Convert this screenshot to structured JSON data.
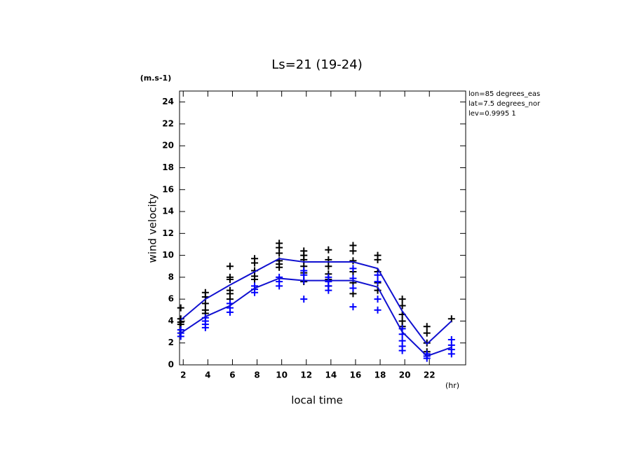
{
  "chart_data": {
    "type": "line",
    "title": "Ls=21 (19-24)",
    "y_unit": "(m.s-1)",
    "y_label": "wind velocity",
    "x_label": "local time",
    "x_unit": "(hr)",
    "annotations": [
      "lon=85 degrees_eas",
      "lat=7.5 degrees_nor",
      "lev=0.9995 1"
    ],
    "xlim": [
      1.7,
      24.95
    ],
    "ylim": [
      0,
      25
    ],
    "xticks": [
      2,
      4,
      6,
      8,
      10,
      12,
      14,
      16,
      18,
      20,
      22
    ],
    "yticks": [
      0,
      2,
      4,
      6,
      8,
      10,
      12,
      14,
      16,
      18,
      20,
      22,
      24
    ],
    "series": [
      {
        "style": "markers",
        "color": "#000000",
        "x": [
          1.8,
          1.8,
          1.8,
          1.8,
          3.8,
          3.8,
          3.8,
          3.8,
          3.8,
          5.8,
          5.8,
          5.8,
          5.8,
          5.8,
          5.8,
          7.8,
          7.8,
          7.8,
          7.8,
          7.8,
          9.8,
          9.8,
          9.8,
          9.8,
          9.8,
          9.8,
          11.8,
          11.8,
          11.8,
          11.8,
          11.8,
          11.8,
          13.8,
          13.8,
          13.8,
          13.8,
          13.8,
          13.8,
          15.8,
          15.8,
          15.8,
          15.8,
          15.8,
          15.8,
          17.8,
          17.8,
          17.8,
          17.8,
          17.8,
          19.8,
          19.8,
          19.8,
          19.8,
          19.8,
          21.8,
          21.8,
          21.8,
          21.8,
          23.8
        ],
        "values": [
          5.2,
          4.2,
          3.9,
          3.7,
          6.6,
          6.2,
          5.6,
          5.0,
          4.7,
          9.0,
          8.0,
          7.8,
          6.8,
          6.5,
          6.0,
          9.7,
          9.3,
          8.6,
          8.1,
          7.8,
          11.1,
          10.7,
          10.2,
          9.5,
          9.2,
          8.9,
          10.4,
          10.0,
          9.6,
          9.0,
          8.4,
          7.6,
          10.5,
          9.6,
          9.0,
          8.3,
          7.8,
          7.2,
          10.9,
          10.4,
          9.5,
          8.5,
          7.5,
          6.5,
          10.0,
          9.6,
          8.5,
          7.5,
          6.8,
          6.0,
          5.4,
          4.6,
          4.0,
          3.5,
          3.5,
          2.9,
          2.0,
          1.2,
          4.2
        ]
      },
      {
        "style": "markers",
        "color": "#0000ff",
        "x": [
          1.8,
          1.8,
          1.8,
          3.8,
          3.8,
          3.8,
          3.8,
          5.8,
          5.8,
          5.8,
          7.8,
          7.8,
          7.8,
          9.8,
          9.8,
          9.8,
          11.8,
          11.8,
          11.8,
          11.8,
          13.8,
          13.8,
          13.8,
          13.8,
          15.8,
          15.8,
          15.8,
          15.8,
          17.8,
          17.8,
          17.8,
          17.8,
          19.8,
          19.8,
          19.8,
          19.8,
          19.8,
          21.8,
          21.8,
          21.8,
          23.8,
          23.8,
          23.8,
          23.8
        ],
        "values": [
          3.2,
          2.9,
          2.6,
          4.3,
          4.0,
          3.7,
          3.4,
          5.6,
          5.2,
          4.8,
          7.2,
          6.9,
          6.6,
          8.0,
          7.6,
          7.2,
          8.6,
          8.2,
          7.7,
          6.0,
          8.0,
          7.6,
          7.2,
          6.8,
          8.8,
          7.9,
          7.0,
          5.3,
          8.2,
          7.6,
          6.0,
          5.0,
          3.3,
          2.8,
          2.2,
          1.7,
          1.3,
          1.0,
          0.8,
          0.6,
          2.3,
          1.8,
          1.4,
          1.0
        ]
      },
      {
        "style": "line",
        "color": "#1010d0",
        "x": [
          1.8,
          3.8,
          5.8,
          7.8,
          9.8,
          11.8,
          13.8,
          15.8,
          17.8,
          19.8,
          21.8,
          23.8
        ],
        "values": [
          4.1,
          6.0,
          7.3,
          8.5,
          9.7,
          9.4,
          9.4,
          9.4,
          8.8,
          4.9,
          1.9,
          4.0
        ]
      },
      {
        "style": "line",
        "color": "#1010d0",
        "x": [
          1.8,
          3.8,
          5.8,
          7.8,
          9.8,
          11.8,
          13.8,
          15.8,
          17.8,
          19.8,
          21.8,
          23.8
        ],
        "values": [
          2.9,
          4.4,
          5.4,
          7.0,
          7.9,
          7.7,
          7.7,
          7.7,
          7.1,
          3.0,
          0.8,
          1.6
        ]
      }
    ]
  }
}
